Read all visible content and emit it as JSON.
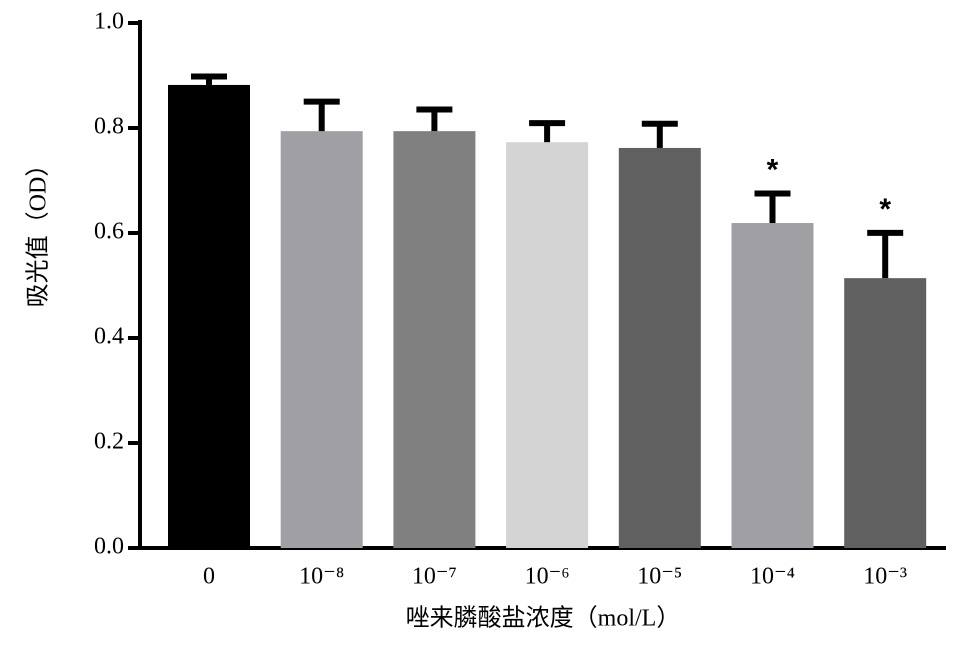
{
  "chart_data": {
    "type": "bar",
    "x_label": "唑来膦酸盐浓度（mol/L）",
    "y_label": "吸光值（OD）",
    "categories": [
      "0",
      "10⁻⁸",
      "10⁻⁷",
      "10⁻⁶",
      "10⁻⁵",
      "10⁻⁴",
      "10⁻³"
    ],
    "values": [
      0.882,
      0.794,
      0.794,
      0.773,
      0.762,
      0.619,
      0.514
    ],
    "errors": [
      0.02,
      0.06,
      0.045,
      0.04,
      0.05,
      0.06,
      0.09
    ],
    "colors": [
      "#000000",
      "#a0a0a4",
      "#808080",
      "#d4d4d4",
      "#606060",
      "#a0a0a4",
      "#606060"
    ],
    "error_color": "#000000",
    "annotations": [
      {
        "category": "10⁻⁴",
        "text": "*"
      },
      {
        "category": "10⁻³",
        "text": "*"
      }
    ],
    "ylim": [
      0,
      1
    ],
    "yticks": [
      {
        "value": 0,
        "label": "0.0"
      },
      0.2,
      0.4,
      0.6,
      0.8,
      {
        "value": 1,
        "label": "1.0"
      }
    ],
    "grid": false
  }
}
